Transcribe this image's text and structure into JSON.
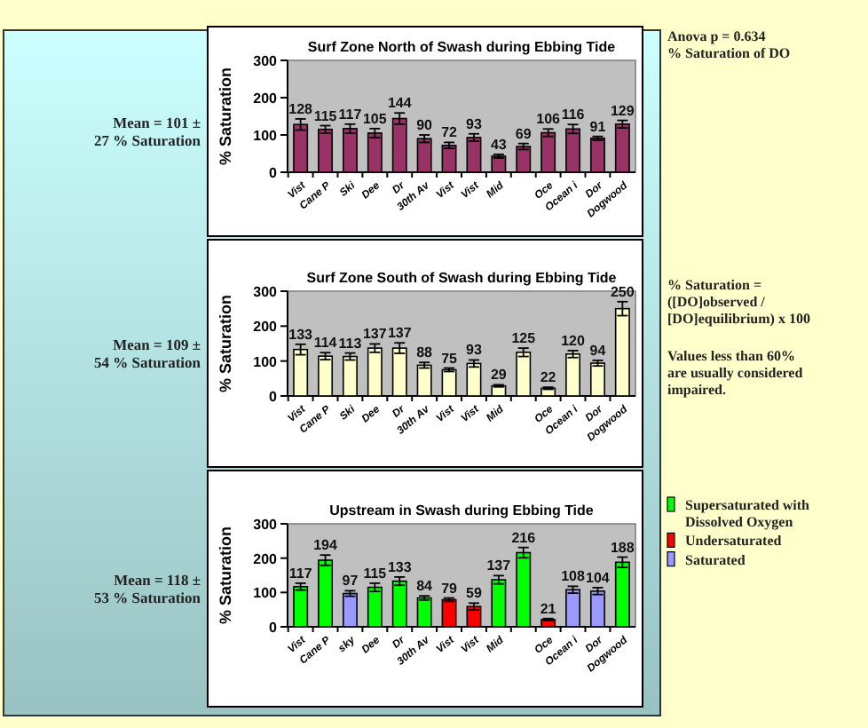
{
  "chart_data": [
    {
      "type": "bar",
      "title": "Surf Zone North of Swash during Ebbing Tide",
      "ylabel": "% Saturation",
      "categories": [
        "Vist",
        "Cane P",
        "Ski",
        "Dee",
        "Dr",
        "30th Av",
        "Vist",
        "Vist",
        "Mid",
        null,
        "Oce",
        "Ocean i",
        "Dor",
        "Dogwood"
      ],
      "values": [
        128,
        115,
        117,
        105,
        144,
        90,
        72,
        93,
        43,
        69,
        106,
        116,
        91,
        129
      ],
      "errors": [
        15,
        10,
        12,
        12,
        15,
        10,
        8,
        10,
        5,
        8,
        10,
        12,
        5,
        10
      ],
      "color": "#993366",
      "ylim": [
        0,
        300
      ],
      "yticks": [
        0,
        100,
        200,
        300
      ],
      "data_labels": true,
      "annotations": [
        "Mean = 101 ±\n27 % Saturation",
        "Anova p = 0.634\n% Saturation of DO"
      ]
    },
    {
      "type": "bar",
      "title": "Surf Zone South of Swash during Ebbing Tide",
      "ylabel": "% Saturation",
      "categories": [
        "Vist",
        "Cane P",
        "Ski",
        "Dee",
        "Dr",
        "30th Av",
        "Vist",
        "Vist",
        "Mid",
        null,
        "Oce",
        "Ocean i",
        "Dor",
        "Dogwood"
      ],
      "values": [
        133,
        114,
        113,
        137,
        137,
        88,
        75,
        93,
        29,
        125,
        22,
        120,
        94,
        250
      ],
      "errors": [
        15,
        10,
        10,
        12,
        15,
        8,
        5,
        10,
        3,
        12,
        3,
        10,
        8,
        20
      ],
      "color": "#ffffcc",
      "ylim": [
        0,
        300
      ],
      "yticks": [
        0,
        100,
        200,
        300
      ],
      "data_labels": true,
      "annotations": [
        "Mean = 109 ±\n54 % Saturation",
        "% Saturation =\n([DO]observed /\n[DO]equilibrium) x 100",
        "Values less than 60%\nare usually considered\nimpaired."
      ]
    },
    {
      "type": "bar",
      "title": "Upstream in Swash during Ebbing Tide",
      "ylabel": "% Saturation",
      "categories": [
        "Vist",
        "Cane P",
        "sky",
        "Dee",
        "Dr",
        "30th Av",
        "Vist",
        "Vist",
        "Mid",
        null,
        "Oce",
        "Ocean i",
        "Dor",
        "Dogwood"
      ],
      "legend": "right",
      "series": [
        {
          "name": "Supersaturated with\nDissolved Oxygen",
          "color": "#00ff00",
          "values": [
            117,
            194,
            null,
            115,
            133,
            84,
            null,
            null,
            137,
            216,
            null,
            null,
            null,
            188
          ],
          "errors": [
            10,
            15,
            null,
            12,
            12,
            6,
            null,
            null,
            12,
            15,
            null,
            null,
            null,
            15
          ]
        },
        {
          "name": "Undersaturated",
          "color": "#ff0000",
          "values": [
            null,
            null,
            null,
            null,
            null,
            null,
            79,
            59,
            null,
            null,
            21,
            null,
            null,
            null
          ],
          "errors": [
            null,
            null,
            null,
            null,
            null,
            null,
            5,
            10,
            null,
            null,
            3,
            null,
            null,
            null
          ]
        },
        {
          "name": "Saturated",
          "color": "#9999ff",
          "values": [
            null,
            null,
            97,
            null,
            null,
            null,
            null,
            null,
            null,
            null,
            null,
            108,
            104,
            null
          ],
          "errors": [
            null,
            null,
            8,
            null,
            null,
            null,
            null,
            null,
            null,
            null,
            null,
            10,
            10,
            null
          ]
        }
      ],
      "ylim": [
        0,
        300
      ],
      "yticks": [
        0,
        100,
        200,
        300
      ],
      "data_labels": true,
      "annotations": [
        "Mean = 118 ±\n53 % Saturation"
      ]
    }
  ]
}
